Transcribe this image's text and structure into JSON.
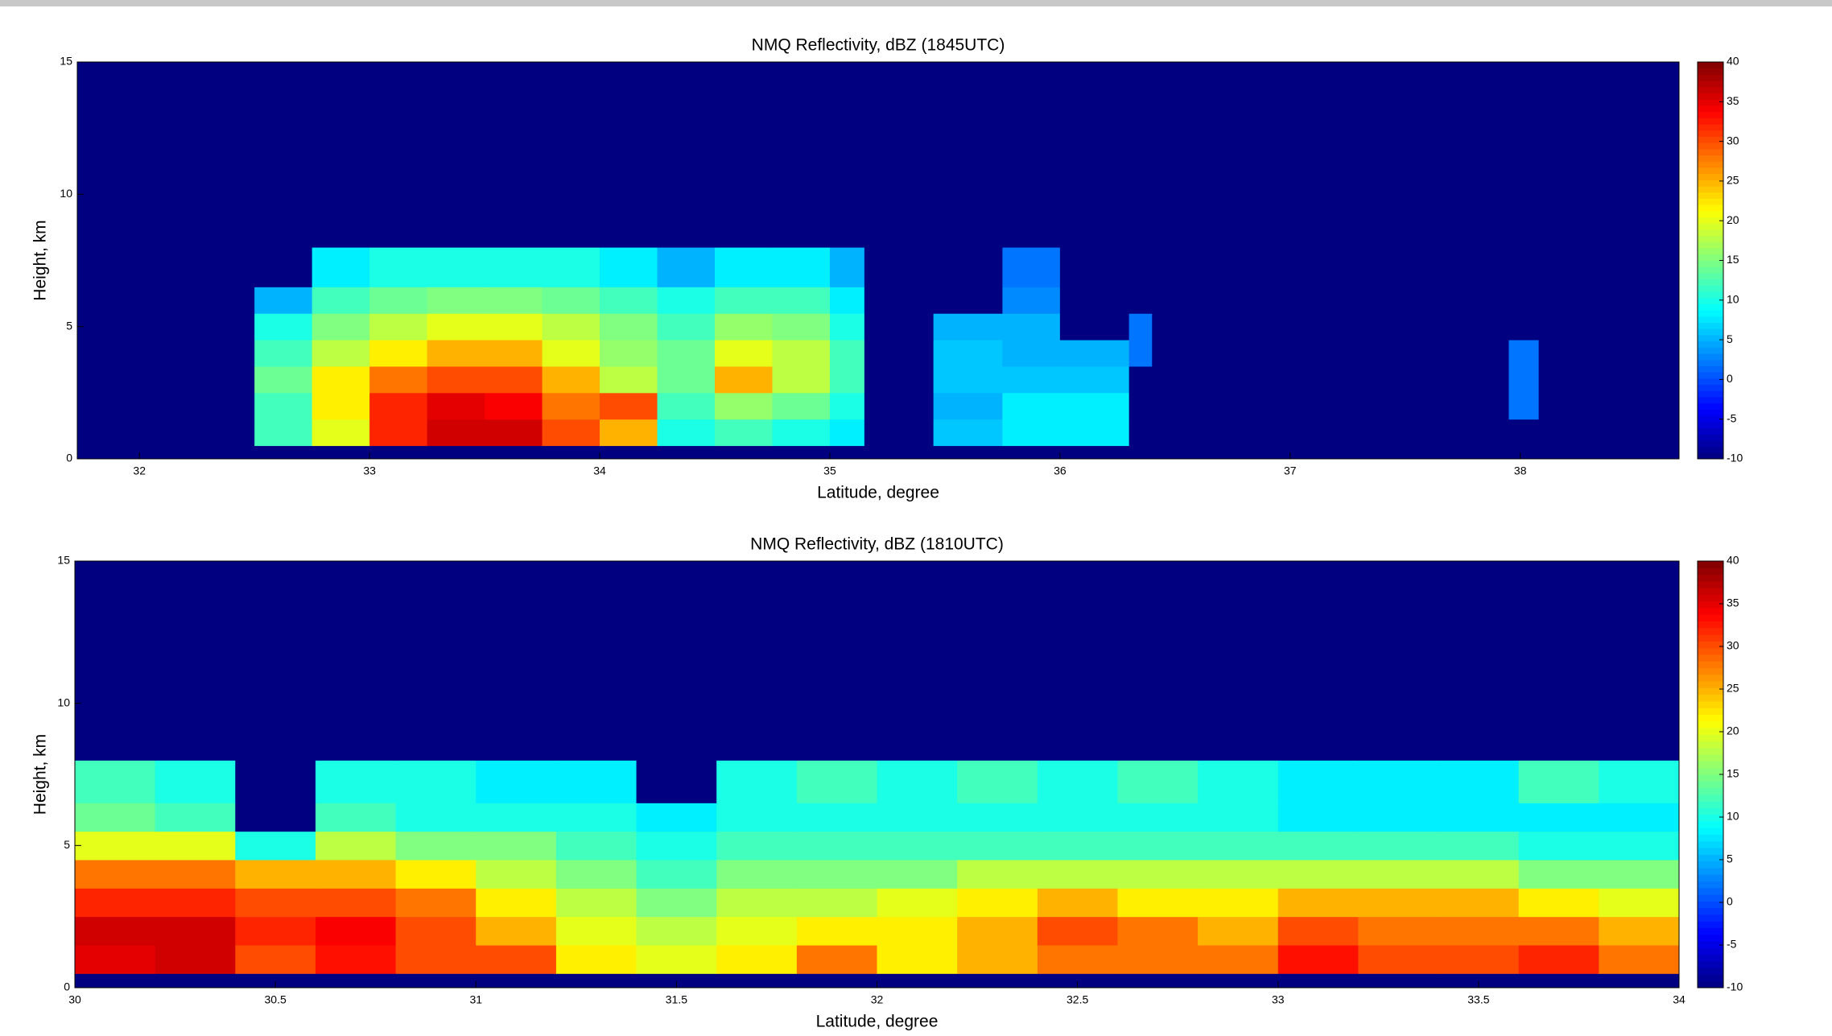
{
  "chart_data": [
    {
      "type": "heatmap",
      "title": "NMQ Reflectivity, dBZ (1845UTC)",
      "xlabel": "Latitude, degree",
      "ylabel": "Height, km",
      "colormap": "jet",
      "clim": [
        -10,
        40
      ],
      "cticks": [
        -10,
        -5,
        0,
        5,
        10,
        15,
        20,
        25,
        30,
        35,
        40
      ],
      "xlim": [
        31.73,
        38.69
      ],
      "xticks": [
        32,
        33,
        34,
        35,
        36,
        37,
        38
      ],
      "ylim": [
        0,
        15
      ],
      "yticks": [
        0,
        5,
        10,
        15
      ],
      "x_edges": [
        31.73,
        32.5,
        32.75,
        33,
        33.25,
        33.5,
        33.75,
        34,
        34.25,
        34.5,
        34.75,
        35,
        35.15,
        35.45,
        35.75,
        36,
        36.3,
        36.4,
        37.95,
        38.08,
        38.69
      ],
      "y_edges": [
        0,
        0.5,
        1.5,
        2.5,
        3.5,
        4.5,
        5.5,
        6.5,
        8,
        15
      ],
      "z": [
        [
          -10,
          -10,
          -10,
          -10,
          -10,
          -10,
          -10,
          -10,
          -10,
          -10,
          -10,
          -10,
          -10,
          -10,
          -10,
          -10,
          -10,
          -10,
          -10,
          -10
        ],
        [
          -10,
          12,
          20,
          32,
          36,
          36,
          30,
          25,
          10,
          12,
          10,
          8,
          -10,
          6,
          8,
          8,
          -10,
          -10,
          -10,
          -10
        ],
        [
          -10,
          12,
          22,
          32,
          35,
          34,
          28,
          30,
          12,
          16,
          14,
          10,
          -10,
          5,
          8,
          8,
          -10,
          -10,
          2,
          -10
        ],
        [
          -10,
          14,
          22,
          28,
          30,
          30,
          25,
          18,
          14,
          25,
          18,
          12,
          -10,
          6,
          6,
          6,
          -10,
          -10,
          2,
          -10
        ],
        [
          -10,
          12,
          18,
          22,
          25,
          25,
          20,
          16,
          14,
          20,
          18,
          12,
          -10,
          6,
          5,
          5,
          2,
          -10,
          2,
          -10
        ],
        [
          -10,
          10,
          15,
          18,
          20,
          20,
          18,
          15,
          12,
          16,
          15,
          10,
          -10,
          5,
          5,
          -10,
          2,
          -10,
          -10,
          -10
        ],
        [
          -10,
          5,
          12,
          14,
          15,
          15,
          14,
          12,
          10,
          12,
          12,
          8,
          -10,
          -10,
          3,
          -10,
          -10,
          -10,
          -10,
          -10
        ],
        [
          -10,
          -10,
          8,
          10,
          10,
          10,
          10,
          8,
          5,
          8,
          8,
          5,
          -10,
          -10,
          2,
          -10,
          -10,
          -10,
          -10,
          -10
        ],
        [
          -10,
          -10,
          -10,
          -10,
          -10,
          -10,
          -10,
          -10,
          -10,
          -10,
          -10,
          -10,
          -10,
          -10,
          -10,
          -10,
          -10,
          -10,
          -10,
          -10
        ]
      ]
    },
    {
      "type": "heatmap",
      "title": "NMQ Reflectivity, dBZ (1810UTC)",
      "xlabel": "Latitude, degree",
      "ylabel": "Height, km",
      "colormap": "jet",
      "clim": [
        -10,
        40
      ],
      "cticks": [
        -10,
        -5,
        0,
        5,
        10,
        15,
        20,
        25,
        30,
        35,
        40
      ],
      "xlim": [
        30,
        34
      ],
      "xticks": [
        30,
        30.5,
        31,
        31.5,
        32,
        32.5,
        33,
        33.5,
        34
      ],
      "ylim": [
        0,
        15
      ],
      "yticks": [
        0,
        5,
        10,
        15
      ],
      "x_edges": [
        30,
        30.2,
        30.4,
        30.6,
        30.8,
        31,
        31.2,
        31.4,
        31.6,
        31.8,
        32,
        32.2,
        32.4,
        32.6,
        32.8,
        33,
        33.2,
        33.4,
        33.6,
        33.8,
        34
      ],
      "y_edges": [
        0,
        0.5,
        1.5,
        2.5,
        3.5,
        4.5,
        5.5,
        6.5,
        8,
        15
      ],
      "z": [
        [
          -10,
          -10,
          -10,
          -10,
          -10,
          -10,
          -10,
          -10,
          -10,
          -10,
          -10,
          -10,
          -10,
          -10,
          -10,
          -10,
          -10,
          -10,
          -10,
          -10
        ],
        [
          35,
          36,
          30,
          33,
          30,
          30,
          22,
          20,
          22,
          28,
          22,
          25,
          28,
          28,
          28,
          33,
          30,
          30,
          32,
          28
        ],
        [
          36,
          36,
          32,
          34,
          30,
          25,
          20,
          18,
          20,
          22,
          22,
          25,
          30,
          28,
          25,
          30,
          28,
          28,
          28,
          25
        ],
        [
          32,
          32,
          30,
          30,
          28,
          22,
          18,
          15,
          18,
          18,
          20,
          22,
          25,
          22,
          22,
          25,
          25,
          25,
          22,
          20
        ],
        [
          28,
          28,
          25,
          25,
          22,
          18,
          15,
          12,
          15,
          15,
          15,
          18,
          18,
          18,
          18,
          18,
          18,
          18,
          15,
          15
        ],
        [
          20,
          20,
          10,
          18,
          15,
          15,
          12,
          10,
          12,
          12,
          12,
          12,
          12,
          12,
          12,
          12,
          12,
          12,
          10,
          10
        ],
        [
          14,
          12,
          -10,
          12,
          10,
          10,
          10,
          8,
          10,
          10,
          10,
          10,
          10,
          10,
          10,
          8,
          8,
          8,
          8,
          8
        ],
        [
          12,
          10,
          -10,
          10,
          10,
          8,
          8,
          -10,
          10,
          12,
          10,
          12,
          10,
          12,
          10,
          8,
          8,
          8,
          12,
          10
        ],
        [
          -10,
          -10,
          -10,
          -10,
          -10,
          -10,
          -10,
          -10,
          -10,
          -10,
          -10,
          -10,
          -10,
          -10,
          -10,
          -10,
          -10,
          -10,
          -10,
          -10
        ]
      ]
    }
  ]
}
